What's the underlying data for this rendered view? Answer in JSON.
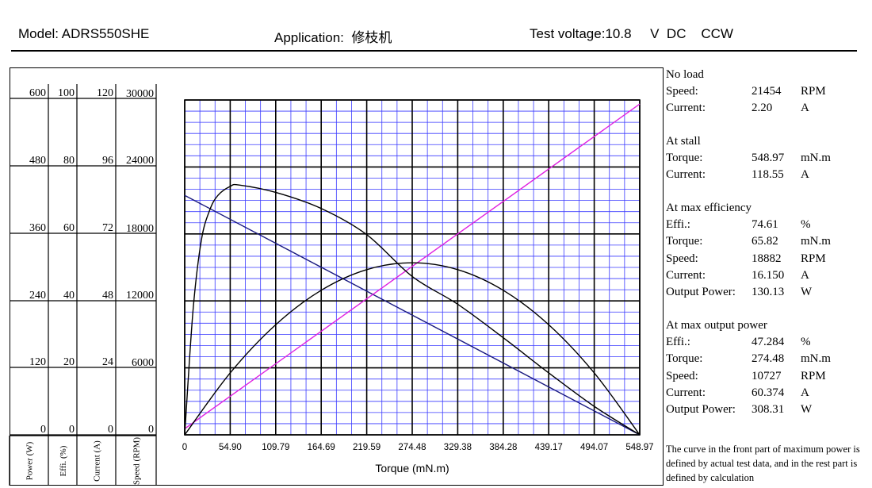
{
  "header": {
    "model": "Model: ADRS550SHE",
    "application": "Application:  修枝机",
    "test_voltage": "Test voltage:10.8     V  DC    CCW"
  },
  "chart_data": {
    "type": "line",
    "xlabel": "Torque (mN.m)",
    "x_ticks": [
      "0",
      "54.90",
      "109.79",
      "164.69",
      "219.59",
      "274.48",
      "329.38",
      "384.28",
      "439.17",
      "494.07",
      "548.97"
    ],
    "xlim": [
      0,
      548.97
    ],
    "axes": [
      {
        "key": "power",
        "label": "Power (W)",
        "ticks": [
          "600",
          "480",
          "360",
          "240",
          "120",
          "0"
        ],
        "range": [
          0,
          600
        ]
      },
      {
        "key": "effi",
        "label": "Effi. (%)",
        "ticks": [
          "100",
          "80",
          "60",
          "40",
          "20",
          "0"
        ],
        "range": [
          0,
          100
        ]
      },
      {
        "key": "current",
        "label": "Current (A)",
        "ticks": [
          "120",
          "96",
          "72",
          "48",
          "24",
          "0"
        ],
        "range": [
          0,
          120
        ]
      },
      {
        "key": "speed",
        "label": "Speed (RPM)",
        "ticks": [
          "30000",
          "24000",
          "18000",
          "12000",
          "6000",
          "0"
        ],
        "range": [
          0,
          30000
        ]
      }
    ],
    "series": [
      {
        "key": "speed",
        "color": "#1a1a80",
        "x": [
          0,
          548.97
        ],
        "y": [
          21454,
          0
        ]
      },
      {
        "key": "current",
        "color": "#e020e0",
        "x": [
          0,
          548.97
        ],
        "y": [
          2.2,
          118.55
        ]
      },
      {
        "key": "power",
        "color": "#000000",
        "x": [
          0,
          54.9,
          109.79,
          164.69,
          219.59,
          274.48,
          329.38,
          384.28,
          439.17,
          494.07,
          548.97
        ],
        "y": [
          0,
          111.0,
          197.3,
          259.0,
          296.0,
          308.3,
          296.0,
          259.0,
          197.3,
          111.0,
          0
        ]
      },
      {
        "key": "effi",
        "color": "#000000",
        "x": [
          0,
          10,
          20,
          30,
          40,
          54.9,
          65.82,
          109.79,
          164.69,
          219.59,
          274.48,
          329.38,
          384.28,
          439.17,
          494.07,
          548.97
        ],
        "y": [
          0,
          37.0,
          58.0,
          67.0,
          71.5,
          74.2,
          74.61,
          72.4,
          67.6,
          59.8,
          47.3,
          39.0,
          29.0,
          18.5,
          8.5,
          0
        ]
      }
    ],
    "grid": true
  },
  "side_panel": [
    {
      "heading": "No load",
      "rows": [
        {
          "label": "Speed:",
          "value": "21454",
          "unit": "RPM"
        },
        {
          "label": "Current:",
          "value": "2.20",
          "unit": "A"
        }
      ]
    },
    {
      "heading": "At stall",
      "rows": [
        {
          "label": "Torque:",
          "value": "548.97",
          "unit": "mN.m"
        },
        {
          "label": "Current:",
          "value": "118.55",
          "unit": "A"
        }
      ]
    },
    {
      "heading": "At max efficiency",
      "rows": [
        {
          "label": "Effi.:",
          "value": "74.61",
          "unit": "%"
        },
        {
          "label": "Torque:",
          "value": "65.82",
          "unit": "mN.m"
        },
        {
          "label": "Speed:",
          "value": "18882",
          "unit": "RPM"
        },
        {
          "label": "Current:",
          "value": "16.150",
          "unit": "A"
        },
        {
          "label": "Output Power:",
          "value": "130.13",
          "unit": "W"
        }
      ]
    },
    {
      "heading": "At max output power",
      "rows": [
        {
          "label": "Effi.:",
          "value": "47.284",
          "unit": "%"
        },
        {
          "label": "Torque:",
          "value": "274.48",
          "unit": "mN.m"
        },
        {
          "label": "Speed:",
          "value": "10727",
          "unit": "RPM"
        },
        {
          "label": "Current:",
          "value": "60.374",
          "unit": "A"
        },
        {
          "label": "Output Power:",
          "value": "308.31",
          "unit": "W"
        }
      ]
    }
  ],
  "note": "The curve in the front part of maximum power is defined by actual test data, and in the rest part is defined by calculation"
}
